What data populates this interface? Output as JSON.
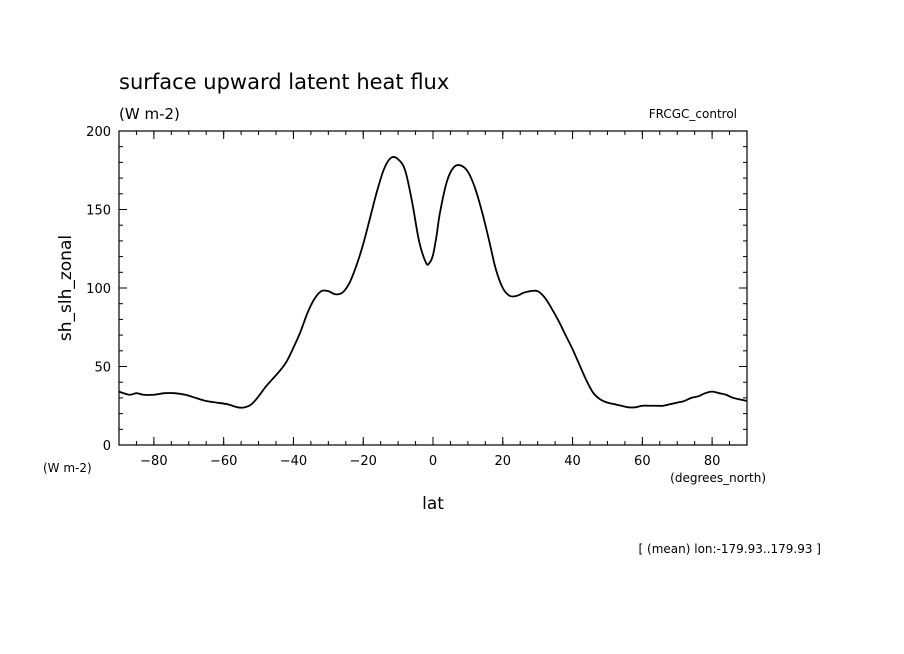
{
  "chart_data": {
    "type": "line",
    "title": "surface upward latent heat flux",
    "subtitle": "(W m-2)",
    "dataset_label": "FRCGC_control",
    "xlabel": "lat",
    "ylabel": "sh_slh_zonal",
    "x_unit": "(degrees_north)",
    "y_unit": "(W m-2)",
    "note": "[ (mean) lon:-179.93..179.93 ]",
    "xlim": [
      -90,
      90
    ],
    "ylim": [
      0,
      200
    ],
    "x_ticks": [
      -80,
      -60,
      -40,
      -20,
      0,
      20,
      40,
      60,
      80
    ],
    "y_ticks": [
      0,
      50,
      100,
      150,
      200
    ],
    "grid": false,
    "series": [
      {
        "x": [
          -90,
          -87,
          -85,
          -83,
          -80,
          -77,
          -74,
          -71,
          -68,
          -65,
          -62,
          -59,
          -56,
          -54,
          -52,
          -50,
          -48,
          -46,
          -44,
          -42,
          -40,
          -38,
          -36,
          -34,
          -32,
          -30,
          -28,
          -26,
          -24,
          -22,
          -20,
          -18,
          -16,
          -14,
          -12,
          -10,
          -8,
          -6,
          -4,
          -2,
          -1,
          0,
          1,
          2,
          4,
          6,
          8,
          10,
          12,
          14,
          16,
          18,
          20,
          22,
          24,
          26,
          28,
          30,
          32,
          34,
          36,
          38,
          40,
          42,
          44,
          46,
          48,
          50,
          52,
          54,
          56,
          58,
          60,
          62,
          64,
          66,
          68,
          70,
          72,
          74,
          76,
          78,
          80,
          82,
          84,
          86,
          88,
          90
        ],
        "y": [
          34,
          32,
          33,
          32,
          32,
          33,
          33,
          32,
          30,
          28,
          27,
          26,
          24,
          24,
          26,
          31,
          37,
          42,
          47,
          53,
          62,
          72,
          84,
          93,
          98,
          98,
          96,
          97,
          103,
          114,
          128,
          145,
          162,
          176,
          183,
          182,
          175,
          155,
          130,
          116,
          116,
          121,
          133,
          148,
          168,
          177,
          178,
          174,
          164,
          149,
          131,
          112,
          100,
          95,
          95,
          97,
          98,
          98,
          94,
          87,
          79,
          70,
          61,
          51,
          41,
          33,
          29,
          27,
          26,
          25,
          24,
          24,
          25,
          25,
          25,
          25,
          26,
          27,
          28,
          30,
          31,
          33,
          34,
          33,
          32,
          30,
          29,
          28
        ]
      }
    ]
  }
}
